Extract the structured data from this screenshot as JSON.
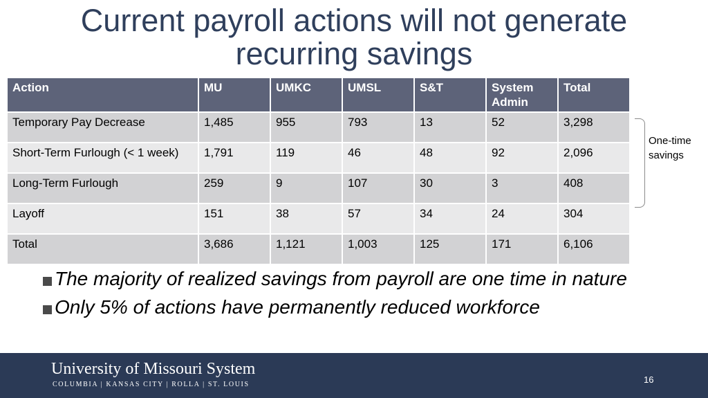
{
  "title": {
    "line1": "Current payroll actions will not generate",
    "line2": "recurring savings"
  },
  "table": {
    "headers": [
      "Action",
      "MU",
      "UMKC",
      "UMSL",
      "S&T",
      "System Admin",
      "Total"
    ],
    "rows": [
      [
        "Temporary Pay Decrease",
        "1,485",
        "955",
        "793",
        "13",
        "52",
        "3,298"
      ],
      [
        "Short-Term Furlough (< 1 week)",
        "1,791",
        "119",
        "46",
        "48",
        "92",
        "2,096"
      ],
      [
        "Long-Term Furlough",
        "259",
        "9",
        "107",
        "30",
        "3",
        "408"
      ],
      [
        "Layoff",
        "151",
        "38",
        "57",
        "34",
        "24",
        "304"
      ],
      [
        "Total",
        "3,686",
        "1,121",
        "1,003",
        "125",
        "171",
        "6,106"
      ]
    ]
  },
  "brace_label": "One-time savings",
  "bullets": [
    "The majority of realized savings from payroll are one time in nature",
    "Only 5% of actions have permanently reduced workforce"
  ],
  "footer": {
    "org_name": "University of Missouri System",
    "campuses": "COLUMBIA | KANSAS CITY | ROLLA | ST. LOUIS",
    "page_number": "16"
  },
  "colors": {
    "title": "#2f3f5c",
    "header_bg": "#5d6379",
    "row_dark": "#d2d2d4",
    "row_light": "#e9e9ea",
    "footer_bg": "#2b3a56"
  }
}
